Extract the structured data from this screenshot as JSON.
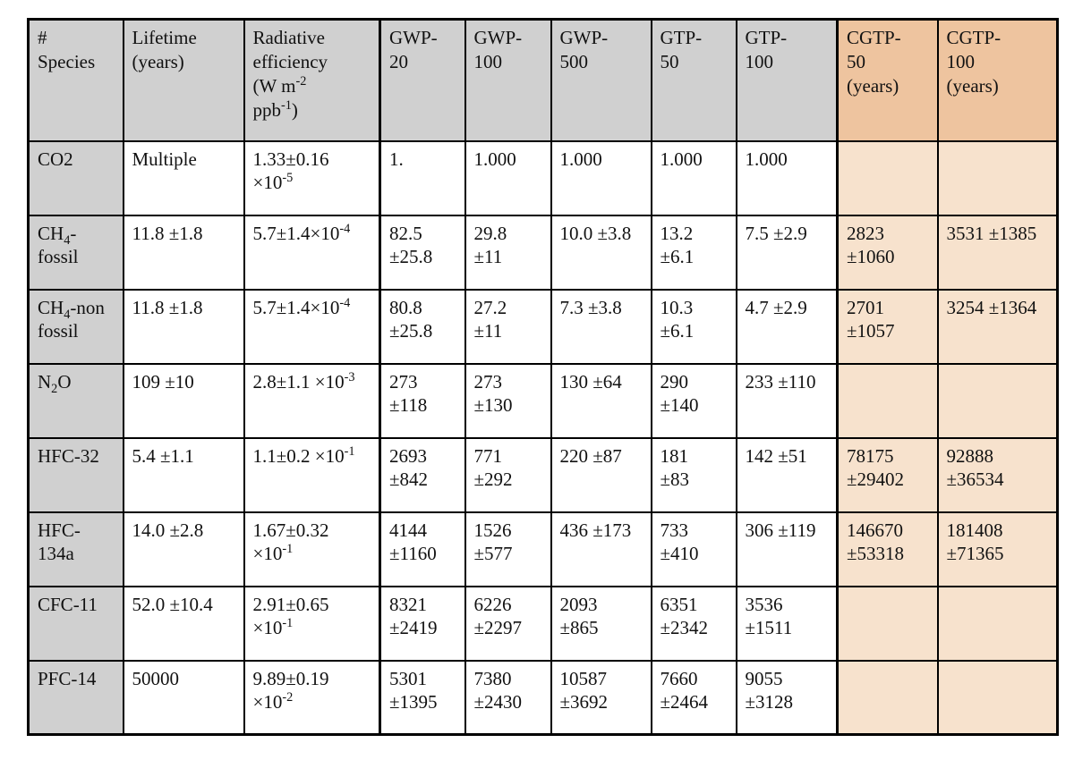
{
  "theme": {
    "header_gray": "#d0d0d0",
    "header_orange": "#eec49f",
    "body_peach": "#f7e2cd",
    "row_label_gray": "#d0d0d0",
    "border_color": "#000000",
    "text_color": "#111111",
    "background": "#ffffff"
  },
  "table": {
    "columns": [
      {
        "id": "species",
        "label": "#\nSpecies",
        "header_style": "gray",
        "body_style": "gray",
        "thick_left": false
      },
      {
        "id": "lifetime",
        "label": "Lifetime\n(years)",
        "header_style": "gray",
        "body_style": "white",
        "thick_left": false
      },
      {
        "id": "rad-eff",
        "label": "Radiative\nefficiency\n(W m^{-2}\nppb^{-1})",
        "header_style": "gray",
        "body_style": "white",
        "thick_left": false
      },
      {
        "id": "gwp-20",
        "label": "GWP-\n20",
        "header_style": "gray",
        "body_style": "white",
        "thick_left": true
      },
      {
        "id": "gwp-100",
        "label": "GWP-\n100",
        "header_style": "gray",
        "body_style": "white",
        "thick_left": false
      },
      {
        "id": "gwp-500",
        "label": "GWP-\n500",
        "header_style": "gray",
        "body_style": "white",
        "thick_left": false
      },
      {
        "id": "gtp-50",
        "label": "GTP-\n50",
        "header_style": "gray",
        "body_style": "white",
        "thick_left": false
      },
      {
        "id": "gtp-100",
        "label": "GTP-\n100",
        "header_style": "gray",
        "body_style": "white",
        "thick_left": false
      },
      {
        "id": "cgtp-50",
        "label": "CGTP-\n50\n(years)",
        "header_style": "orange",
        "body_style": "peach",
        "thick_left": true
      },
      {
        "id": "cgtp-100",
        "label": "CGTP-\n100\n(years)",
        "header_style": "orange",
        "body_style": "peach",
        "thick_left": false
      }
    ],
    "rows": [
      {
        "cells": [
          "CO2",
          "Multiple",
          "1.33±0.16\n×10^{-5}",
          "1.",
          "1.000",
          "1.000",
          "1.000",
          "1.000",
          "",
          ""
        ]
      },
      {
        "cells": [
          "CH_{4}-\nfossil",
          "11.8 ±1.8",
          "5.7±1.4×10^{-4}",
          "82.5\n±25.8",
          "29.8\n±11",
          "10.0 ±3.8",
          "13.2\n±6.1",
          "7.5 ±2.9",
          "2823\n±1060",
          "3531 ±1385"
        ]
      },
      {
        "cells": [
          "CH_{4}-non\nfossil",
          "11.8 ±1.8",
          "5.7±1.4×10^{-4}",
          "80.8\n±25.8",
          "27.2\n±11",
          "7.3 ±3.8",
          "10.3\n±6.1",
          "4.7 ±2.9",
          "2701\n±1057",
          "3254 ±1364"
        ]
      },
      {
        "cells": [
          "N_{2}O",
          "109 ±10",
          "2.8±1.1 ×10^{-3}",
          "273\n±118",
          "273\n±130",
          "130 ±64",
          "290\n±140",
          "233 ±110",
          "",
          ""
        ]
      },
      {
        "cells": [
          "HFC-32",
          "5.4 ±1.1",
          "1.1±0.2 ×10^{-1}",
          "2693\n±842",
          "771\n±292",
          "220 ±87",
          "181\n±83",
          "142 ±51",
          "78175\n±29402",
          "92888\n±36534"
        ]
      },
      {
        "cells": [
          "HFC-\n134a",
          "14.0 ±2.8",
          "1.67±0.32\n×10^{-1}",
          "4144\n±1160",
          "1526\n±577",
          "436 ±173",
          "733\n±410",
          "306 ±119",
          "146670\n±53318",
          "181408\n±71365"
        ]
      },
      {
        "cells": [
          "CFC-11",
          "52.0 ±10.4",
          "2.91±0.65\n×10^{-1}",
          "8321\n±2419",
          "6226\n±2297",
          "2093\n±865",
          "6351\n±2342",
          "3536\n±1511",
          "",
          ""
        ]
      },
      {
        "cells": [
          "PFC-14",
          "50000",
          "9.89±0.19\n×10^{-2}",
          "5301\n±1395",
          "7380\n±2430",
          "10587\n±3692",
          "7660\n±2464",
          "9055\n±3128",
          "",
          ""
        ]
      }
    ]
  }
}
